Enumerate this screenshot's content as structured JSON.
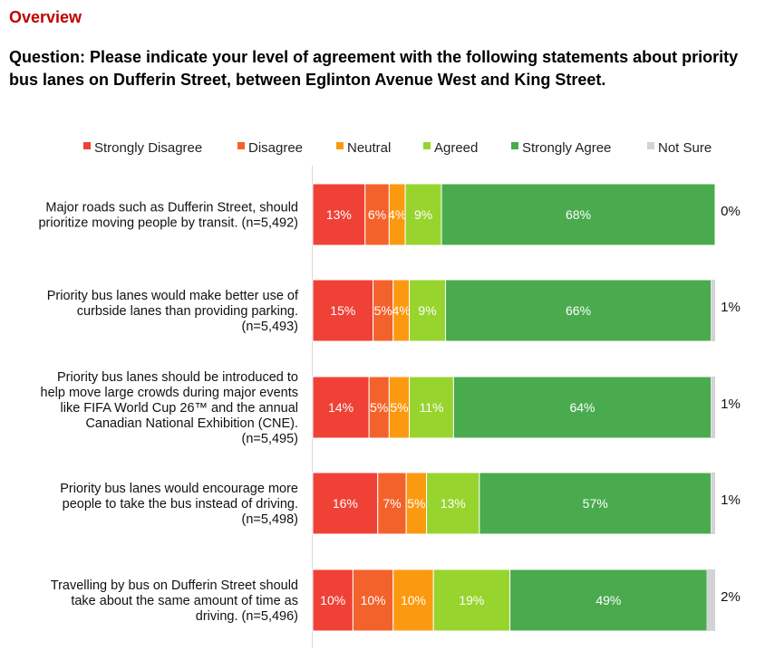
{
  "header": {
    "section_title": "Overview",
    "question": "Question: Please indicate your level of agreement with the following statements about priority bus lanes on Dufferin Street, between Eglinton Avenue West and King Street."
  },
  "chart_data": {
    "type": "bar",
    "orientation": "horizontal-stacked-100",
    "legend_position": "top",
    "series": [
      {
        "name": "Strongly Disagree",
        "color": "#f04137",
        "values": [
          13,
          15,
          14,
          16,
          10
        ]
      },
      {
        "name": "Disagree",
        "color": "#f4622c",
        "values": [
          6,
          5,
          5,
          7,
          10
        ]
      },
      {
        "name": "Neutral",
        "color": "#fb9a10",
        "values": [
          4,
          4,
          5,
          5,
          10
        ]
      },
      {
        "name": "Agreed",
        "color": "#97d42e",
        "values": [
          9,
          9,
          11,
          13,
          19
        ]
      },
      {
        "name": "Strongly Agree",
        "color": "#4aaa4e",
        "values": [
          68,
          66,
          64,
          57,
          49
        ]
      },
      {
        "name": "Not Sure",
        "color": "#d3d3d3",
        "values": [
          0,
          1,
          1,
          1,
          2
        ]
      }
    ],
    "data_labels": [
      [
        "13%",
        "6%",
        "4%",
        "9%",
        "68%",
        "0%"
      ],
      [
        "15%",
        "5%",
        "4%",
        "9%",
        "66%",
        "1%"
      ],
      [
        "14%",
        "5%",
        "5%",
        "11%",
        "64%",
        "1%"
      ],
      [
        "16%",
        "7%",
        "5%",
        "13%",
        "57%",
        "1%"
      ],
      [
        "10%",
        "10%",
        "10%",
        "19%",
        "49%",
        "2%"
      ]
    ],
    "categories": [
      [
        "Major roads such as Dufferin Street, should",
        "prioritize moving people by transit.  (n=5,492)"
      ],
      [
        "Priority bus lanes would make better use of",
        "curbside lanes than providing parking.",
        "(n=5,493)"
      ],
      [
        "Priority bus lanes should be introduced to",
        "help move large crowds during major events",
        "like FIFA World Cup 26™ and the annual",
        "Canadian National Exhibition (CNE).",
        "(n=5,495)"
      ],
      [
        "Priority bus lanes would encourage more",
        "people to take the bus instead of driving.",
        "(n=5,498)"
      ],
      [
        "Travelling by bus on Dufferin Street should",
        "take about the same amount of time as",
        "driving.  (n=5,496)"
      ]
    ]
  }
}
